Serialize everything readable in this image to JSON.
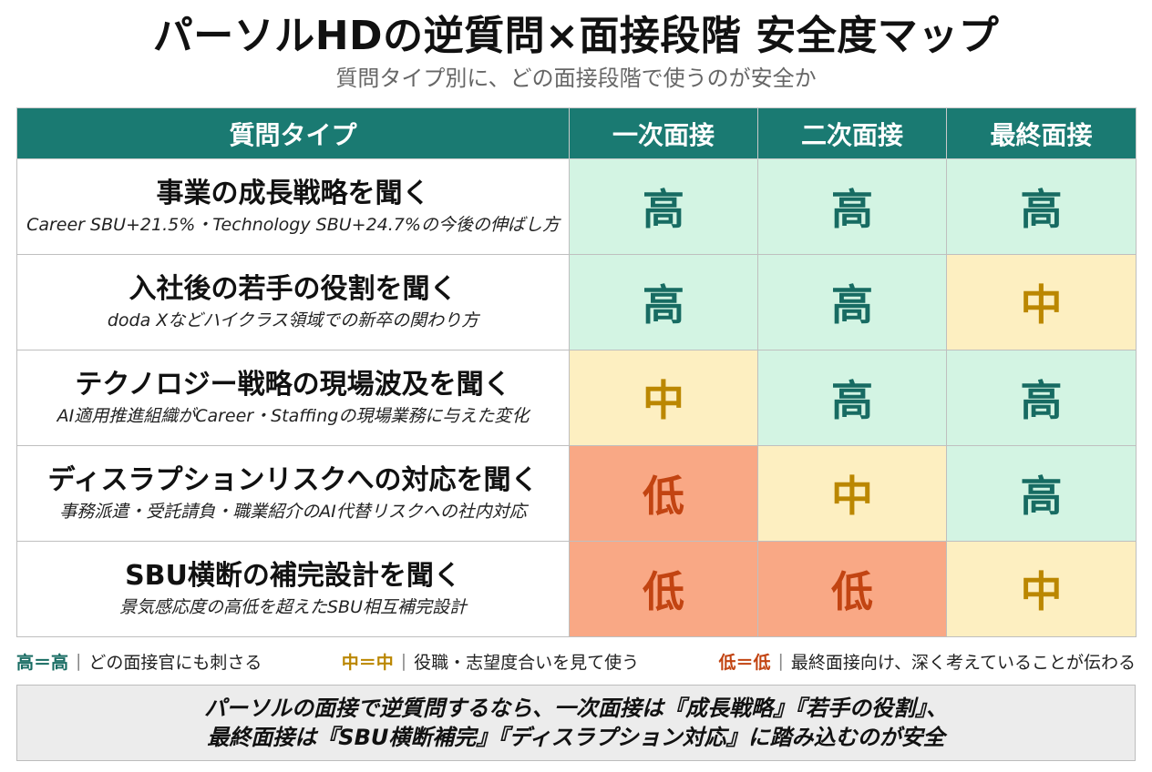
{
  "title": "パーソルHDの逆質問×面接段階 安全度マップ",
  "subtitle": "質問タイプ別に、どの面接段階で使うのが安全か",
  "table": {
    "headers": [
      "質問タイプ",
      "一次面接",
      "二次面接",
      "最終面接"
    ],
    "rows": [
      {
        "title": "事業の成長戦略を聞く",
        "sub": "Career SBU+21.5%・Technology SBU+24.7%の今後の伸ばし方",
        "ratings": [
          "高",
          "高",
          "高"
        ],
        "levels": [
          "high",
          "high",
          "high"
        ]
      },
      {
        "title": "入社後の若手の役割を聞く",
        "sub": "doda Xなどハイクラス領域での新卒の関わり方",
        "ratings": [
          "高",
          "高",
          "中"
        ],
        "levels": [
          "high",
          "high",
          "mid"
        ]
      },
      {
        "title": "テクノロジー戦略の現場波及を聞く",
        "sub": "AI適用推進組織がCareer・Staffingの現場業務に与えた変化",
        "ratings": [
          "中",
          "高",
          "高"
        ],
        "levels": [
          "mid",
          "high",
          "high"
        ]
      },
      {
        "title": "ディスラプションリスクへの対応を聞く",
        "sub": "事務派遣・受託請負・職業紹介のAI代替リスクへの社内対応",
        "ratings": [
          "低",
          "中",
          "高"
        ],
        "levels": [
          "low",
          "mid",
          "high"
        ]
      },
      {
        "title": "SBU横断の補完設計を聞く",
        "sub": "景気感応度の高低を超えたSBU相互補完設計",
        "ratings": [
          "低",
          "低",
          "中"
        ],
        "levels": [
          "low",
          "low",
          "mid"
        ]
      }
    ]
  },
  "legend": [
    {
      "key": "高＝高",
      "desc": "どの面接官にも刺さる",
      "level": "high"
    },
    {
      "key": "中＝中",
      "desc": "役職・志望度合いを見て使う",
      "level": "mid"
    },
    {
      "key": "低＝低",
      "desc": "最終面接向け、深く考えていることが伝わる",
      "level": "low"
    }
  ],
  "legend_separator": "|",
  "summary": {
    "line1": "パーソルの面接で逆質問するなら、一次面接は『成長戦略』『若手の役割』、",
    "line2": "最終面接は『SBU横断補完』『ディスラプション対応』に踏み込むのが安全"
  },
  "colors": {
    "header_bg": "#1a7a72",
    "high_bg": "#d3f4e3",
    "high_text": "#176b62",
    "mid_bg": "#fdefc1",
    "mid_text": "#bb8700",
    "low_bg": "#f9a885",
    "low_text": "#c24412"
  }
}
